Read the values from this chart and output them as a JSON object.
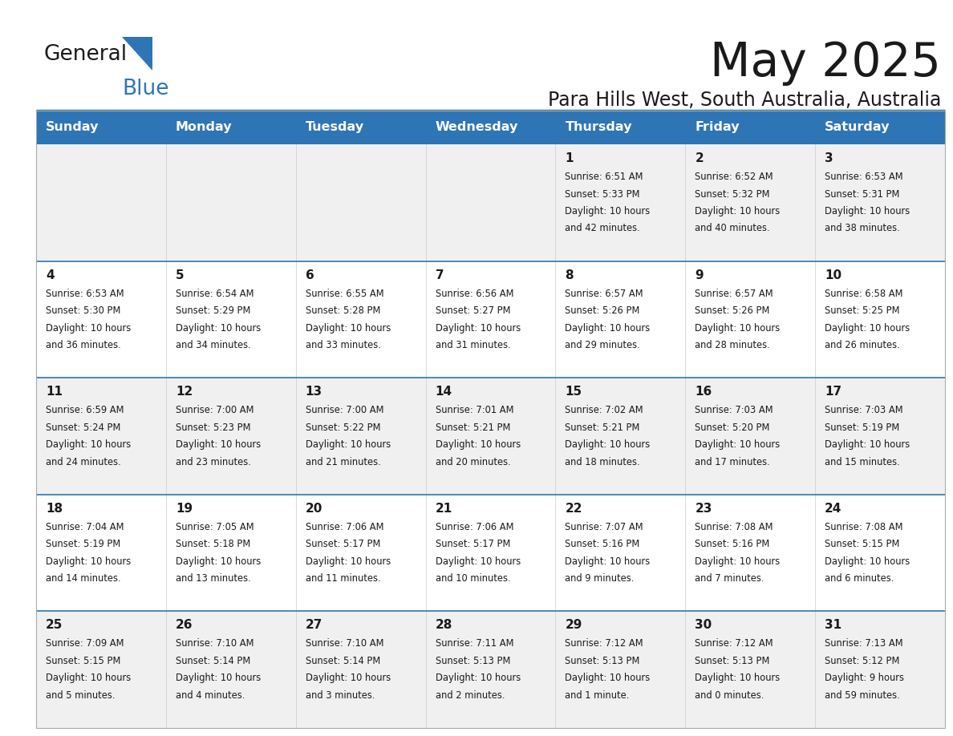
{
  "title": "May 2025",
  "subtitle": "Para Hills West, South Australia, Australia",
  "header_color": "#2E75B6",
  "header_text_color": "#FFFFFF",
  "cell_bg_even": "#F0F0F0",
  "cell_bg_odd": "#FFFFFF",
  "text_color": "#1a1a1a",
  "divider_color": "#2E75B6",
  "day_names": [
    "Sunday",
    "Monday",
    "Tuesday",
    "Wednesday",
    "Thursday",
    "Friday",
    "Saturday"
  ],
  "calendar": [
    [
      {
        "day": "",
        "sunrise": "",
        "sunset": "",
        "daylight": ""
      },
      {
        "day": "",
        "sunrise": "",
        "sunset": "",
        "daylight": ""
      },
      {
        "day": "",
        "sunrise": "",
        "sunset": "",
        "daylight": ""
      },
      {
        "day": "",
        "sunrise": "",
        "sunset": "",
        "daylight": ""
      },
      {
        "day": "1",
        "sunrise": "6:51 AM",
        "sunset": "5:33 PM",
        "daylight": "10 hours and 42 minutes."
      },
      {
        "day": "2",
        "sunrise": "6:52 AM",
        "sunset": "5:32 PM",
        "daylight": "10 hours and 40 minutes."
      },
      {
        "day": "3",
        "sunrise": "6:53 AM",
        "sunset": "5:31 PM",
        "daylight": "10 hours and 38 minutes."
      }
    ],
    [
      {
        "day": "4",
        "sunrise": "6:53 AM",
        "sunset": "5:30 PM",
        "daylight": "10 hours and 36 minutes."
      },
      {
        "day": "5",
        "sunrise": "6:54 AM",
        "sunset": "5:29 PM",
        "daylight": "10 hours and 34 minutes."
      },
      {
        "day": "6",
        "sunrise": "6:55 AM",
        "sunset": "5:28 PM",
        "daylight": "10 hours and 33 minutes."
      },
      {
        "day": "7",
        "sunrise": "6:56 AM",
        "sunset": "5:27 PM",
        "daylight": "10 hours and 31 minutes."
      },
      {
        "day": "8",
        "sunrise": "6:57 AM",
        "sunset": "5:26 PM",
        "daylight": "10 hours and 29 minutes."
      },
      {
        "day": "9",
        "sunrise": "6:57 AM",
        "sunset": "5:26 PM",
        "daylight": "10 hours and 28 minutes."
      },
      {
        "day": "10",
        "sunrise": "6:58 AM",
        "sunset": "5:25 PM",
        "daylight": "10 hours and 26 minutes."
      }
    ],
    [
      {
        "day": "11",
        "sunrise": "6:59 AM",
        "sunset": "5:24 PM",
        "daylight": "10 hours and 24 minutes."
      },
      {
        "day": "12",
        "sunrise": "7:00 AM",
        "sunset": "5:23 PM",
        "daylight": "10 hours and 23 minutes."
      },
      {
        "day": "13",
        "sunrise": "7:00 AM",
        "sunset": "5:22 PM",
        "daylight": "10 hours and 21 minutes."
      },
      {
        "day": "14",
        "sunrise": "7:01 AM",
        "sunset": "5:21 PM",
        "daylight": "10 hours and 20 minutes."
      },
      {
        "day": "15",
        "sunrise": "7:02 AM",
        "sunset": "5:21 PM",
        "daylight": "10 hours and 18 minutes."
      },
      {
        "day": "16",
        "sunrise": "7:03 AM",
        "sunset": "5:20 PM",
        "daylight": "10 hours and 17 minutes."
      },
      {
        "day": "17",
        "sunrise": "7:03 AM",
        "sunset": "5:19 PM",
        "daylight": "10 hours and 15 minutes."
      }
    ],
    [
      {
        "day": "18",
        "sunrise": "7:04 AM",
        "sunset": "5:19 PM",
        "daylight": "10 hours and 14 minutes."
      },
      {
        "day": "19",
        "sunrise": "7:05 AM",
        "sunset": "5:18 PM",
        "daylight": "10 hours and 13 minutes."
      },
      {
        "day": "20",
        "sunrise": "7:06 AM",
        "sunset": "5:17 PM",
        "daylight": "10 hours and 11 minutes."
      },
      {
        "day": "21",
        "sunrise": "7:06 AM",
        "sunset": "5:17 PM",
        "daylight": "10 hours and 10 minutes."
      },
      {
        "day": "22",
        "sunrise": "7:07 AM",
        "sunset": "5:16 PM",
        "daylight": "10 hours and 9 minutes."
      },
      {
        "day": "23",
        "sunrise": "7:08 AM",
        "sunset": "5:16 PM",
        "daylight": "10 hours and 7 minutes."
      },
      {
        "day": "24",
        "sunrise": "7:08 AM",
        "sunset": "5:15 PM",
        "daylight": "10 hours and 6 minutes."
      }
    ],
    [
      {
        "day": "25",
        "sunrise": "7:09 AM",
        "sunset": "5:15 PM",
        "daylight": "10 hours and 5 minutes."
      },
      {
        "day": "26",
        "sunrise": "7:10 AM",
        "sunset": "5:14 PM",
        "daylight": "10 hours and 4 minutes."
      },
      {
        "day": "27",
        "sunrise": "7:10 AM",
        "sunset": "5:14 PM",
        "daylight": "10 hours and 3 minutes."
      },
      {
        "day": "28",
        "sunrise": "7:11 AM",
        "sunset": "5:13 PM",
        "daylight": "10 hours and 2 minutes."
      },
      {
        "day": "29",
        "sunrise": "7:12 AM",
        "sunset": "5:13 PM",
        "daylight": "10 hours and 1 minute."
      },
      {
        "day": "30",
        "sunrise": "7:12 AM",
        "sunset": "5:13 PM",
        "daylight": "10 hours and 0 minutes."
      },
      {
        "day": "31",
        "sunrise": "7:13 AM",
        "sunset": "5:12 PM",
        "daylight": "9 hours and 59 minutes."
      }
    ]
  ],
  "logo_color_general": "#1a1a1a",
  "logo_color_blue": "#2E75B6"
}
